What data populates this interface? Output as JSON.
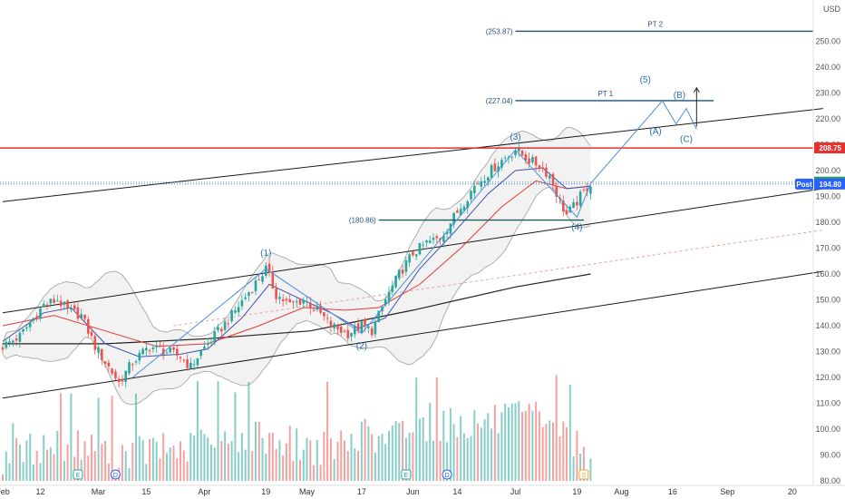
{
  "chart_data": {
    "type": "candlestick",
    "currency_label": "USD",
    "y_range": [
      78,
      262
    ],
    "y_ticks": [
      80,
      90,
      100,
      110,
      120,
      130,
      140,
      150,
      160,
      170,
      180,
      190,
      200,
      210,
      220,
      230,
      240,
      250
    ],
    "x_ticks": [
      {
        "label": "Feb",
        "day": 0
      },
      {
        "label": "12",
        "day": 11
      },
      {
        "label": "Mar",
        "day": 28
      },
      {
        "label": "15",
        "day": 42
      },
      {
        "label": "Apr",
        "day": 59
      },
      {
        "label": "19",
        "day": 77
      },
      {
        "label": "May",
        "day": 89
      },
      {
        "label": "17",
        "day": 105
      },
      {
        "label": "Jun",
        "day": 120
      },
      {
        "label": "14",
        "day": 133
      },
      {
        "label": "Jul",
        "day": 150
      },
      {
        "label": "19",
        "day": 168
      },
      {
        "label": "Aug",
        "day": 181
      },
      {
        "label": "16",
        "day": 196
      },
      {
        "label": "Sep",
        "day": 212
      },
      {
        "label": "20",
        "day": 231
      }
    ],
    "price_anchors": [
      [
        0,
        132
      ],
      [
        5,
        136
      ],
      [
        12,
        148
      ],
      [
        16,
        150
      ],
      [
        19,
        146
      ],
      [
        23,
        144
      ],
      [
        27,
        132
      ],
      [
        31,
        124
      ],
      [
        34,
        118
      ],
      [
        38,
        126
      ],
      [
        43,
        132
      ],
      [
        48,
        130
      ],
      [
        52,
        128
      ],
      [
        55,
        124
      ],
      [
        58,
        130
      ],
      [
        62,
        136
      ],
      [
        67,
        144
      ],
      [
        72,
        153
      ],
      [
        77,
        162
      ],
      [
        80,
        152
      ],
      [
        84,
        148
      ],
      [
        88,
        150
      ],
      [
        92,
        146
      ],
      [
        96,
        140
      ],
      [
        101,
        137
      ],
      [
        105,
        140
      ],
      [
        108,
        138
      ],
      [
        112,
        150
      ],
      [
        116,
        160
      ],
      [
        120,
        168
      ],
      [
        124,
        172
      ],
      [
        128,
        174
      ],
      [
        131,
        180
      ],
      [
        134,
        186
      ],
      [
        138,
        194
      ],
      [
        142,
        199
      ],
      [
        146,
        204
      ],
      [
        150,
        208
      ],
      [
        152,
        206
      ],
      [
        154,
        204
      ],
      [
        157,
        202
      ],
      [
        160,
        198
      ],
      [
        163,
        188
      ],
      [
        165,
        183
      ],
      [
        167,
        186
      ],
      [
        169,
        190
      ],
      [
        172,
        195
      ]
    ],
    "volume_anchors": [
      [
        0,
        86
      ],
      [
        10,
        90
      ],
      [
        20,
        92
      ],
      [
        30,
        88
      ],
      [
        40,
        89
      ],
      [
        60,
        90
      ],
      [
        75,
        95
      ],
      [
        90,
        90
      ],
      [
        110,
        92
      ],
      [
        120,
        98
      ],
      [
        140,
        100
      ],
      [
        160,
        102
      ],
      [
        172,
        86
      ]
    ],
    "ma_short_anchors": [
      [
        0,
        134
      ],
      [
        12,
        145
      ],
      [
        20,
        147
      ],
      [
        30,
        133
      ],
      [
        40,
        128
      ],
      [
        52,
        129
      ],
      [
        60,
        131
      ],
      [
        70,
        143
      ],
      [
        78,
        156
      ],
      [
        86,
        151
      ],
      [
        96,
        145
      ],
      [
        104,
        139
      ],
      [
        112,
        143
      ],
      [
        122,
        162
      ],
      [
        132,
        176
      ],
      [
        142,
        191
      ],
      [
        150,
        200
      ],
      [
        158,
        201
      ],
      [
        165,
        193
      ],
      [
        172,
        194
      ]
    ],
    "ma_long_anchors": [
      [
        0,
        140
      ],
      [
        15,
        144
      ],
      [
        30,
        138
      ],
      [
        45,
        132
      ],
      [
        60,
        133
      ],
      [
        75,
        140
      ],
      [
        88,
        147
      ],
      [
        100,
        146
      ],
      [
        110,
        147
      ],
      [
        122,
        156
      ],
      [
        134,
        170
      ],
      [
        146,
        186
      ],
      [
        156,
        196
      ],
      [
        165,
        193
      ],
      [
        172,
        194
      ]
    ],
    "ma_slow_anchors": [
      [
        0,
        133
      ],
      [
        30,
        133
      ],
      [
        60,
        135
      ],
      [
        90,
        138
      ],
      [
        120,
        146
      ],
      [
        150,
        155
      ],
      [
        172,
        160
      ]
    ],
    "channel_lines": [
      {
        "name": "upper-channel",
        "from": [
          0,
          188
        ],
        "to": [
          240,
          224
        ]
      },
      {
        "name": "middle-channel",
        "from": [
          0,
          145
        ],
        "to": [
          240,
          193
        ]
      },
      {
        "name": "lower-channel",
        "from": [
          0,
          112
        ],
        "to": [
          240,
          161
        ]
      }
    ],
    "dashed_projection": {
      "from": [
        50,
        140
      ],
      "to": [
        240,
        177
      ]
    },
    "horizontal_lines": [
      {
        "name": "resistance-line",
        "value": 208.75,
        "label": "208.75",
        "color": "#e5322f"
      },
      {
        "name": "current-price-line",
        "value": 195.53,
        "label": "195.53",
        "color": "#2a9d5c"
      },
      {
        "name": "post-price-line",
        "value": 194.8,
        "label": "194.80",
        "post_label": "Post",
        "color": "#2962ff"
      }
    ],
    "levels": [
      {
        "name": "pt2",
        "title": "PT 2",
        "value_label": "(253.87)",
        "value": 253.87,
        "from_day": 150,
        "to_day": 240
      },
      {
        "name": "pt1",
        "title": "PT 1",
        "value_label": "(227.04)",
        "value": 227.04,
        "from_day": 150,
        "to_day": 208
      },
      {
        "name": "support-180",
        "title": "",
        "value_label": "(180.86)",
        "value": 180.86,
        "from_day": 110,
        "to_day": 170
      }
    ],
    "wave_labels": [
      {
        "label": "(1)",
        "day": 77,
        "value": 167
      },
      {
        "label": "(2)",
        "day": 105,
        "value": 131
      },
      {
        "label": "(3)",
        "day": 150,
        "value": 212
      },
      {
        "label": "(4)",
        "day": 168,
        "value": 177
      },
      {
        "label": "(5)",
        "day": 188,
        "value": 234
      },
      {
        "label": "(A)",
        "day": 191,
        "value": 214
      },
      {
        "label": "(B)",
        "day": 198,
        "value": 228
      },
      {
        "label": "(C)",
        "day": 200,
        "value": 211
      }
    ],
    "wave_path": [
      [
        38,
        120
      ],
      [
        77,
        162
      ],
      [
        105,
        137
      ],
      [
        150,
        208
      ],
      [
        168,
        182
      ],
      [
        172,
        195
      ],
      [
        193,
        227
      ],
      [
        197,
        218
      ],
      [
        200,
        224
      ],
      [
        203,
        216
      ]
    ],
    "target_arrow": {
      "day": 203,
      "from": 217,
      "to": 232
    },
    "event_markers": [
      {
        "label": "E",
        "day": 22,
        "color": "#26a69a"
      },
      {
        "label": "D",
        "day": 33,
        "color": "#2962ff"
      },
      {
        "label": "E",
        "day": 118,
        "color": "#26a69a"
      },
      {
        "label": "D",
        "day": 130,
        "color": "#2962ff"
      },
      {
        "label": "S",
        "day": 170,
        "color": "#f5a623"
      }
    ],
    "colors": {
      "up": "#26a69a",
      "down": "#ef5350",
      "wave": "#4a90d9",
      "ma_short": "#3f51b5",
      "ma_long": "#e53935",
      "ma_slow": "#222222",
      "channel": "#1a1a1a",
      "level": "#1f4e79",
      "support": "#1b5e5e"
    }
  }
}
